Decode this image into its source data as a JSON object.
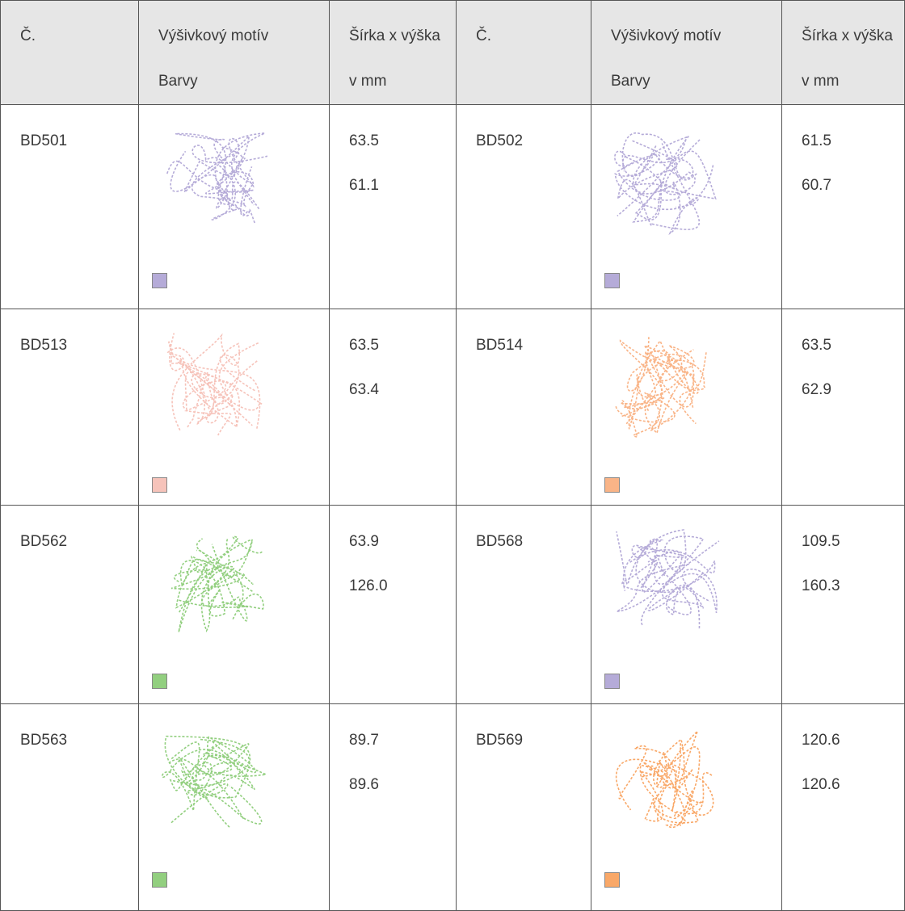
{
  "table": {
    "header": [
      [
        "Č."
      ],
      [
        "Výšivkový motív",
        "Barvy"
      ],
      [
        "Šírka x výška",
        "v mm"
      ],
      [
        "Č."
      ],
      [
        "Výšivkový motív",
        "Barvy"
      ],
      [
        "Šírka x výška",
        "v mm"
      ]
    ],
    "rows": [
      [
        {
          "id": "BD501",
          "width": "63.5",
          "height": "61.1",
          "color": "#b5abd8"
        },
        {
          "id": "BD502",
          "width": "61.5",
          "height": "60.7",
          "color": "#b5abd8"
        }
      ],
      [
        {
          "id": "BD513",
          "width": "63.5",
          "height": "63.4",
          "color": "#f6c3ba"
        },
        {
          "id": "BD514",
          "width": "63.5",
          "height": "62.9",
          "color": "#f9b487"
        }
      ],
      [
        {
          "id": "BD562",
          "width": "63.9",
          "height": "126.0",
          "color": "#92cf7f"
        },
        {
          "id": "BD568",
          "width": "109.5",
          "height": "160.3",
          "color": "#b5abd8"
        }
      ],
      [
        {
          "id": "BD563",
          "width": "89.7",
          "height": "89.6",
          "color": "#92cf7f"
        },
        {
          "id": "BD569",
          "width": "120.6",
          "height": "120.6",
          "color": "#f9a868"
        }
      ]
    ]
  }
}
